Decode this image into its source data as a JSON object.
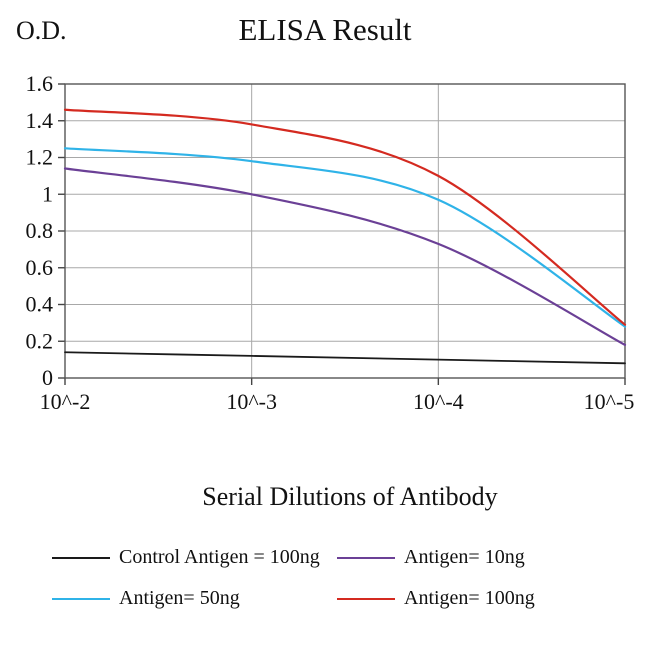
{
  "chart": {
    "title": "ELISA Result",
    "y_axis_title": "O.D.",
    "xlabel": "Serial Dilutions of Antibody"
  },
  "chart_data": {
    "type": "line",
    "title": "ELISA Result",
    "ylabel": "O.D.",
    "xlabel": "Serial Dilutions of Antibody",
    "x_tick_labels": [
      "10^-2",
      "10^-3",
      "10^-4",
      "10^-5"
    ],
    "ylim": [
      0,
      1.6
    ],
    "y_tick_step": 0.2,
    "grid": true,
    "legend_position": "bottom",
    "series": [
      {
        "name": "Control Antigen = 100ng",
        "color": "#1a1a1a",
        "values": [
          0.14,
          0.12,
          0.1,
          0.08
        ]
      },
      {
        "name": "Antigen= 10ng",
        "color": "#6b4096",
        "values": [
          1.14,
          1.0,
          0.73,
          0.18
        ]
      },
      {
        "name": "Antigen= 50ng",
        "color": "#2fb3e8",
        "values": [
          1.25,
          1.18,
          0.97,
          0.28
        ]
      },
      {
        "name": "Antigen= 100ng",
        "color": "#d42a20",
        "values": [
          1.46,
          1.38,
          1.1,
          0.29
        ]
      }
    ]
  }
}
